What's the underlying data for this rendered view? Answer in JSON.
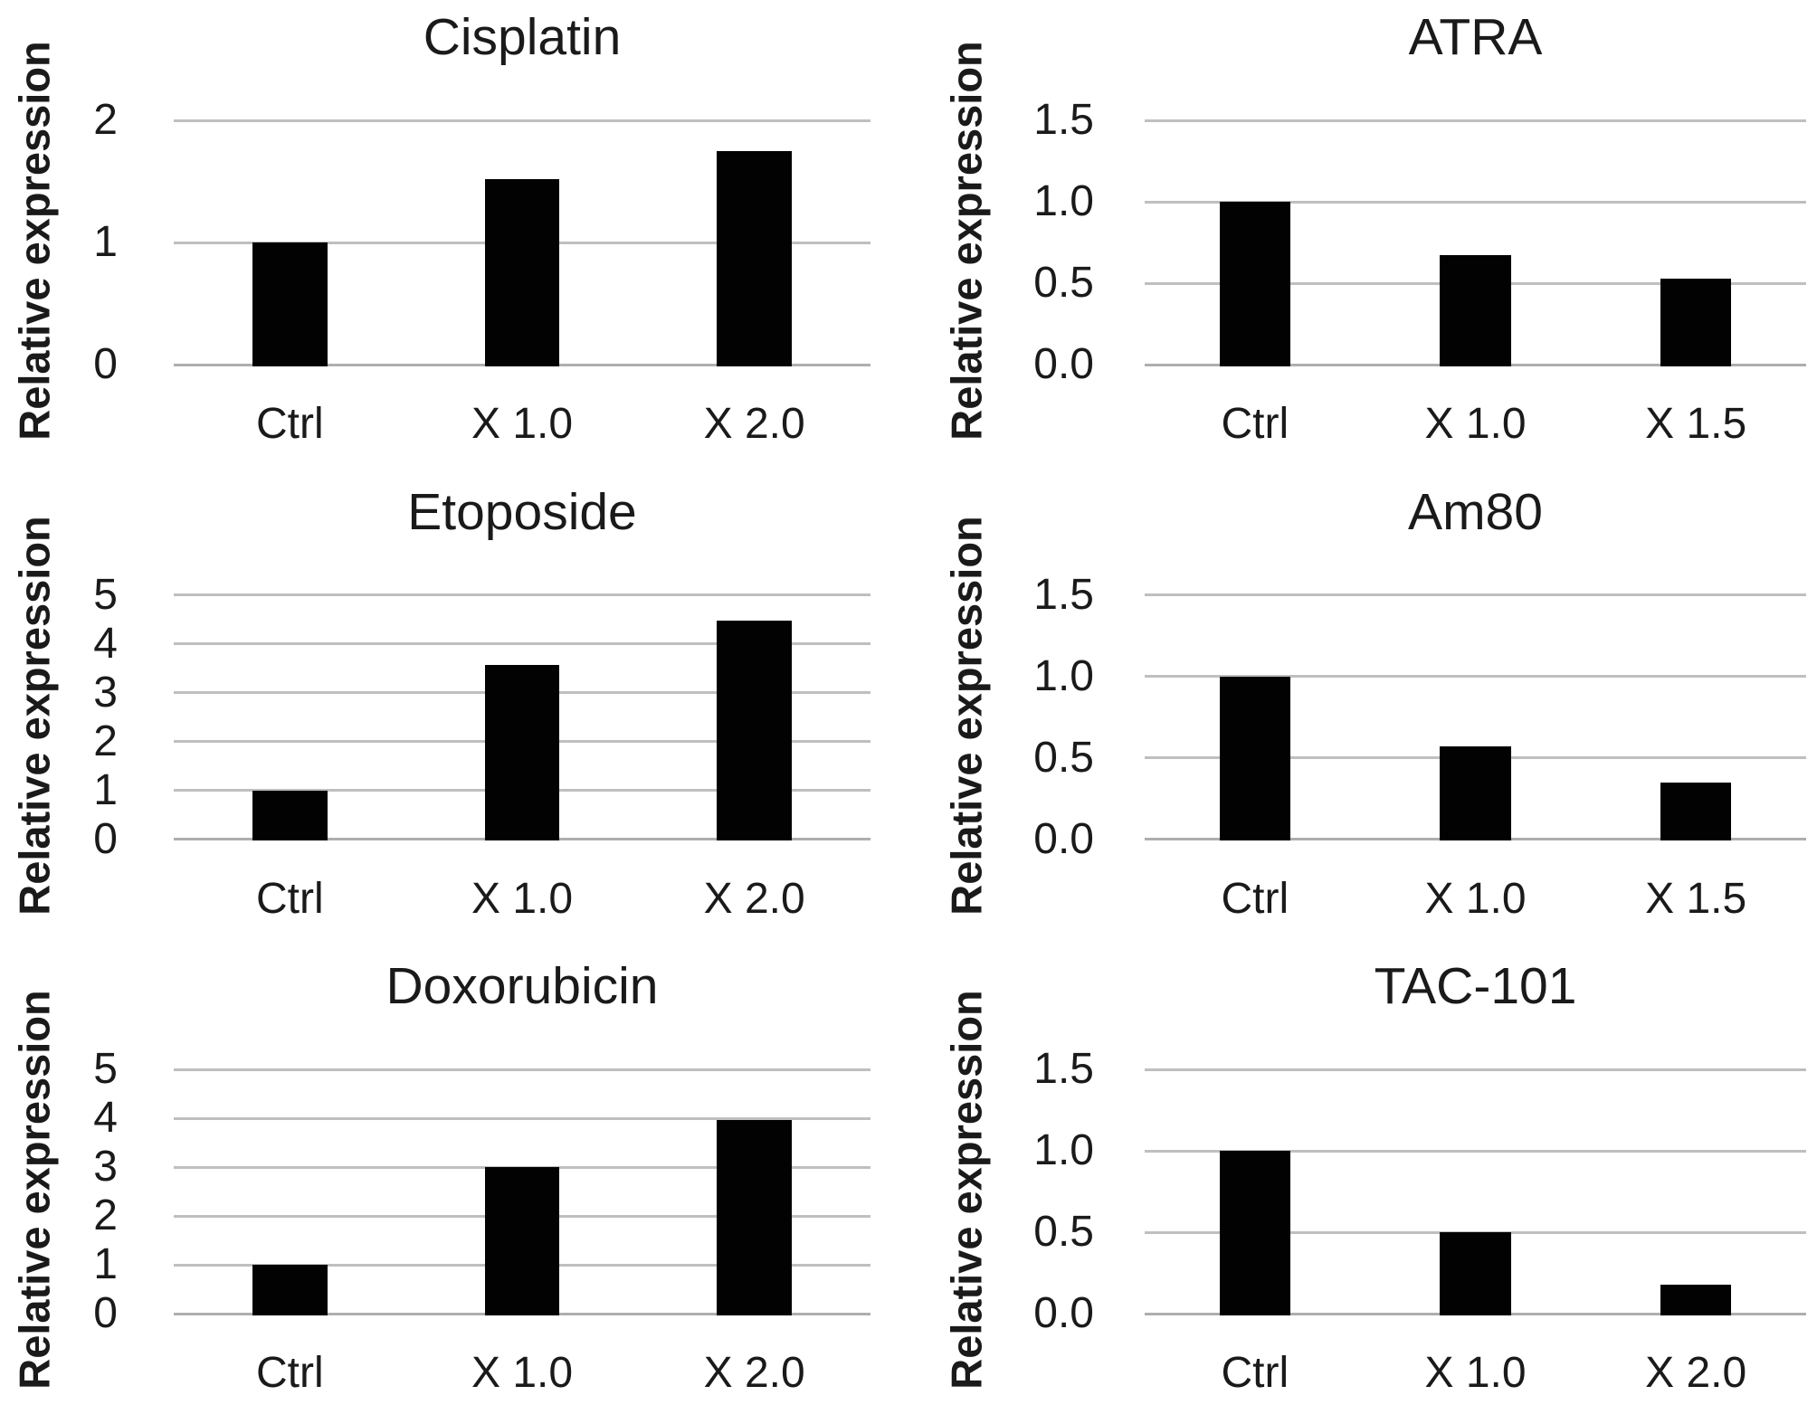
{
  "figure": {
    "description_visible_text_only": "Six bar charts in a 2-column by 3-row grid",
    "y_axis_title": "Relative expression"
  },
  "colors": {
    "bar": "#020202",
    "gridline": "#bfbfbf",
    "axis_line": "#aeaeae",
    "text": "#1a1a1a",
    "background": "#ffffff"
  },
  "chart_data": [
    {
      "type": "bar",
      "title": "Cisplatin",
      "ylabel": "Relative expression",
      "xlabel": "",
      "categories": [
        "Ctrl",
        "X 1.0",
        "X 2.0"
      ],
      "values": [
        1.0,
        1.52,
        1.75
      ],
      "ymax": 2,
      "ylim": [
        0,
        2
      ],
      "yticks": [
        0,
        1,
        2
      ],
      "ytick_labels": [
        "0",
        "1",
        "2"
      ],
      "grid": true,
      "legend": "none"
    },
    {
      "type": "bar",
      "title": "ATRA",
      "ylabel": "Relative expression",
      "xlabel": "",
      "categories": [
        "Ctrl",
        "X 1.0",
        "X 1.5"
      ],
      "values": [
        1.0,
        0.67,
        0.53
      ],
      "ymax": 1.5,
      "ylim": [
        0,
        1.5
      ],
      "yticks": [
        0,
        0.5,
        1.0,
        1.5
      ],
      "ytick_labels": [
        "0.0",
        "0.5",
        "1.0",
        "1.5"
      ],
      "grid": true,
      "legend": "none"
    },
    {
      "type": "bar",
      "title": "Etoposide",
      "ylabel": "Relative expression",
      "xlabel": "",
      "categories": [
        "Ctrl",
        "X 1.0",
        "X 2.0"
      ],
      "values": [
        1.0,
        3.57,
        4.47
      ],
      "ymax": 5,
      "ylim": [
        0,
        5
      ],
      "yticks": [
        0,
        1,
        2,
        3,
        4,
        5
      ],
      "ytick_labels": [
        "0",
        "1",
        "2",
        "3",
        "4",
        "5"
      ],
      "grid": true,
      "legend": "none"
    },
    {
      "type": "bar",
      "title": "Am80",
      "ylabel": "Relative expression",
      "xlabel": "",
      "categories": [
        "Ctrl",
        "X 1.0",
        "X 1.5"
      ],
      "values": [
        1.0,
        0.57,
        0.35
      ],
      "ymax": 1.5,
      "ylim": [
        0,
        1.5
      ],
      "yticks": [
        0,
        0.5,
        1.0,
        1.5
      ],
      "ytick_labels": [
        "0.0",
        "0.5",
        "1.0",
        "1.5"
      ],
      "grid": true,
      "legend": "none"
    },
    {
      "type": "bar",
      "title": "Doxorubicin",
      "ylabel": "Relative expression",
      "xlabel": "",
      "categories": [
        "Ctrl",
        "X 1.0",
        "X 2.0"
      ],
      "values": [
        1.0,
        3.0,
        3.97
      ],
      "ymax": 5,
      "ylim": [
        0,
        5
      ],
      "yticks": [
        0,
        1,
        2,
        3,
        4,
        5
      ],
      "ytick_labels": [
        "0",
        "1",
        "2",
        "3",
        "4",
        "5"
      ],
      "grid": true,
      "legend": "none"
    },
    {
      "type": "bar",
      "title": "TAC-101",
      "ylabel": "Relative expression",
      "xlabel": "",
      "categories": [
        "Ctrl",
        "X 1.0",
        "X 2.0"
      ],
      "values": [
        1.0,
        0.5,
        0.18
      ],
      "ymax": 1.5,
      "ylim": [
        0,
        1.5
      ],
      "yticks": [
        0,
        0.5,
        1.0,
        1.5
      ],
      "ytick_labels": [
        "0.0",
        "0.5",
        "1.0",
        "1.5"
      ],
      "grid": true,
      "legend": "none"
    }
  ]
}
